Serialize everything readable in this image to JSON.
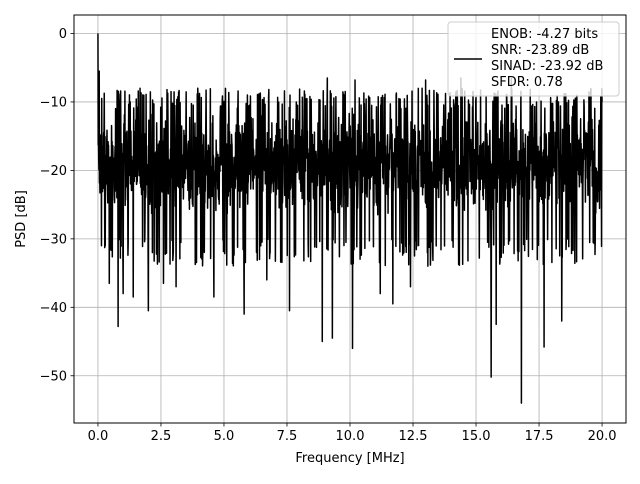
{
  "chart_data": {
    "type": "line",
    "title": "",
    "xlabel": "Frequency [MHz]",
    "ylabel": "PSD [dB]",
    "xlim": [
      -0.95,
      20.95
    ],
    "ylim": [
      -56.9,
      2.7
    ],
    "xticks": [
      0.0,
      2.5,
      5.0,
      7.5,
      10.0,
      12.5,
      15.0,
      17.5,
      20.0
    ],
    "xtick_labels": [
      "0.0",
      "2.5",
      "5.0",
      "7.5",
      "10.0",
      "12.5",
      "15.0",
      "17.5",
      "20.0"
    ],
    "yticks": [
      0,
      -10,
      -20,
      -30,
      -40,
      -50
    ],
    "ytick_labels": [
      "0",
      "−10",
      "−20",
      "−30",
      "−40",
      "−50"
    ],
    "grid": true,
    "legend_position": "top-right",
    "legend_lines": [
      "ENOB: -4.27 bits",
      "SNR: -23.89 dB",
      "SINAD: -23.92 dB",
      "SFDR: 0.78"
    ],
    "series": [
      {
        "color": "#000000",
        "x_range": [
          0.0,
          20.0
        ],
        "typical_band_db": [
          -30,
          -8
        ],
        "peaks": [
          {
            "x": 0.0,
            "y": 0.0
          },
          {
            "x": 0.05,
            "y": -5.5
          },
          {
            "x": 0.15,
            "y": -9.5
          },
          {
            "x": 2.9,
            "y": -8.5
          },
          {
            "x": 7.6,
            "y": -8.8
          },
          {
            "x": 9.1,
            "y": -6.5
          },
          {
            "x": 10.2,
            "y": -6.8
          },
          {
            "x": 13.0,
            "y": -6.8
          },
          {
            "x": 14.4,
            "y": -6.5
          },
          {
            "x": 16.4,
            "y": -6.6
          },
          {
            "x": 18.4,
            "y": -7.2
          },
          {
            "x": 20.0,
            "y": -10.0
          }
        ],
        "dips": [
          {
            "x": 0.45,
            "y": -36.5
          },
          {
            "x": 0.8,
            "y": -42.8
          },
          {
            "x": 1.0,
            "y": -38.0
          },
          {
            "x": 1.4,
            "y": -38.5
          },
          {
            "x": 2.0,
            "y": -40.5
          },
          {
            "x": 2.6,
            "y": -36.5
          },
          {
            "x": 3.1,
            "y": -37.0
          },
          {
            "x": 4.6,
            "y": -38.5
          },
          {
            "x": 5.8,
            "y": -41.0
          },
          {
            "x": 6.7,
            "y": -36.0
          },
          {
            "x": 7.6,
            "y": -40.5
          },
          {
            "x": 8.9,
            "y": -45.0
          },
          {
            "x": 9.3,
            "y": -44.5
          },
          {
            "x": 10.1,
            "y": -46.0
          },
          {
            "x": 11.2,
            "y": -38.0
          },
          {
            "x": 11.7,
            "y": -39.5
          },
          {
            "x": 12.4,
            "y": -37.0
          },
          {
            "x": 15.6,
            "y": -50.2
          },
          {
            "x": 15.8,
            "y": -42.5
          },
          {
            "x": 16.8,
            "y": -54.0
          },
          {
            "x": 17.7,
            "y": -45.8
          },
          {
            "x": 18.4,
            "y": -42.0
          }
        ]
      }
    ]
  }
}
